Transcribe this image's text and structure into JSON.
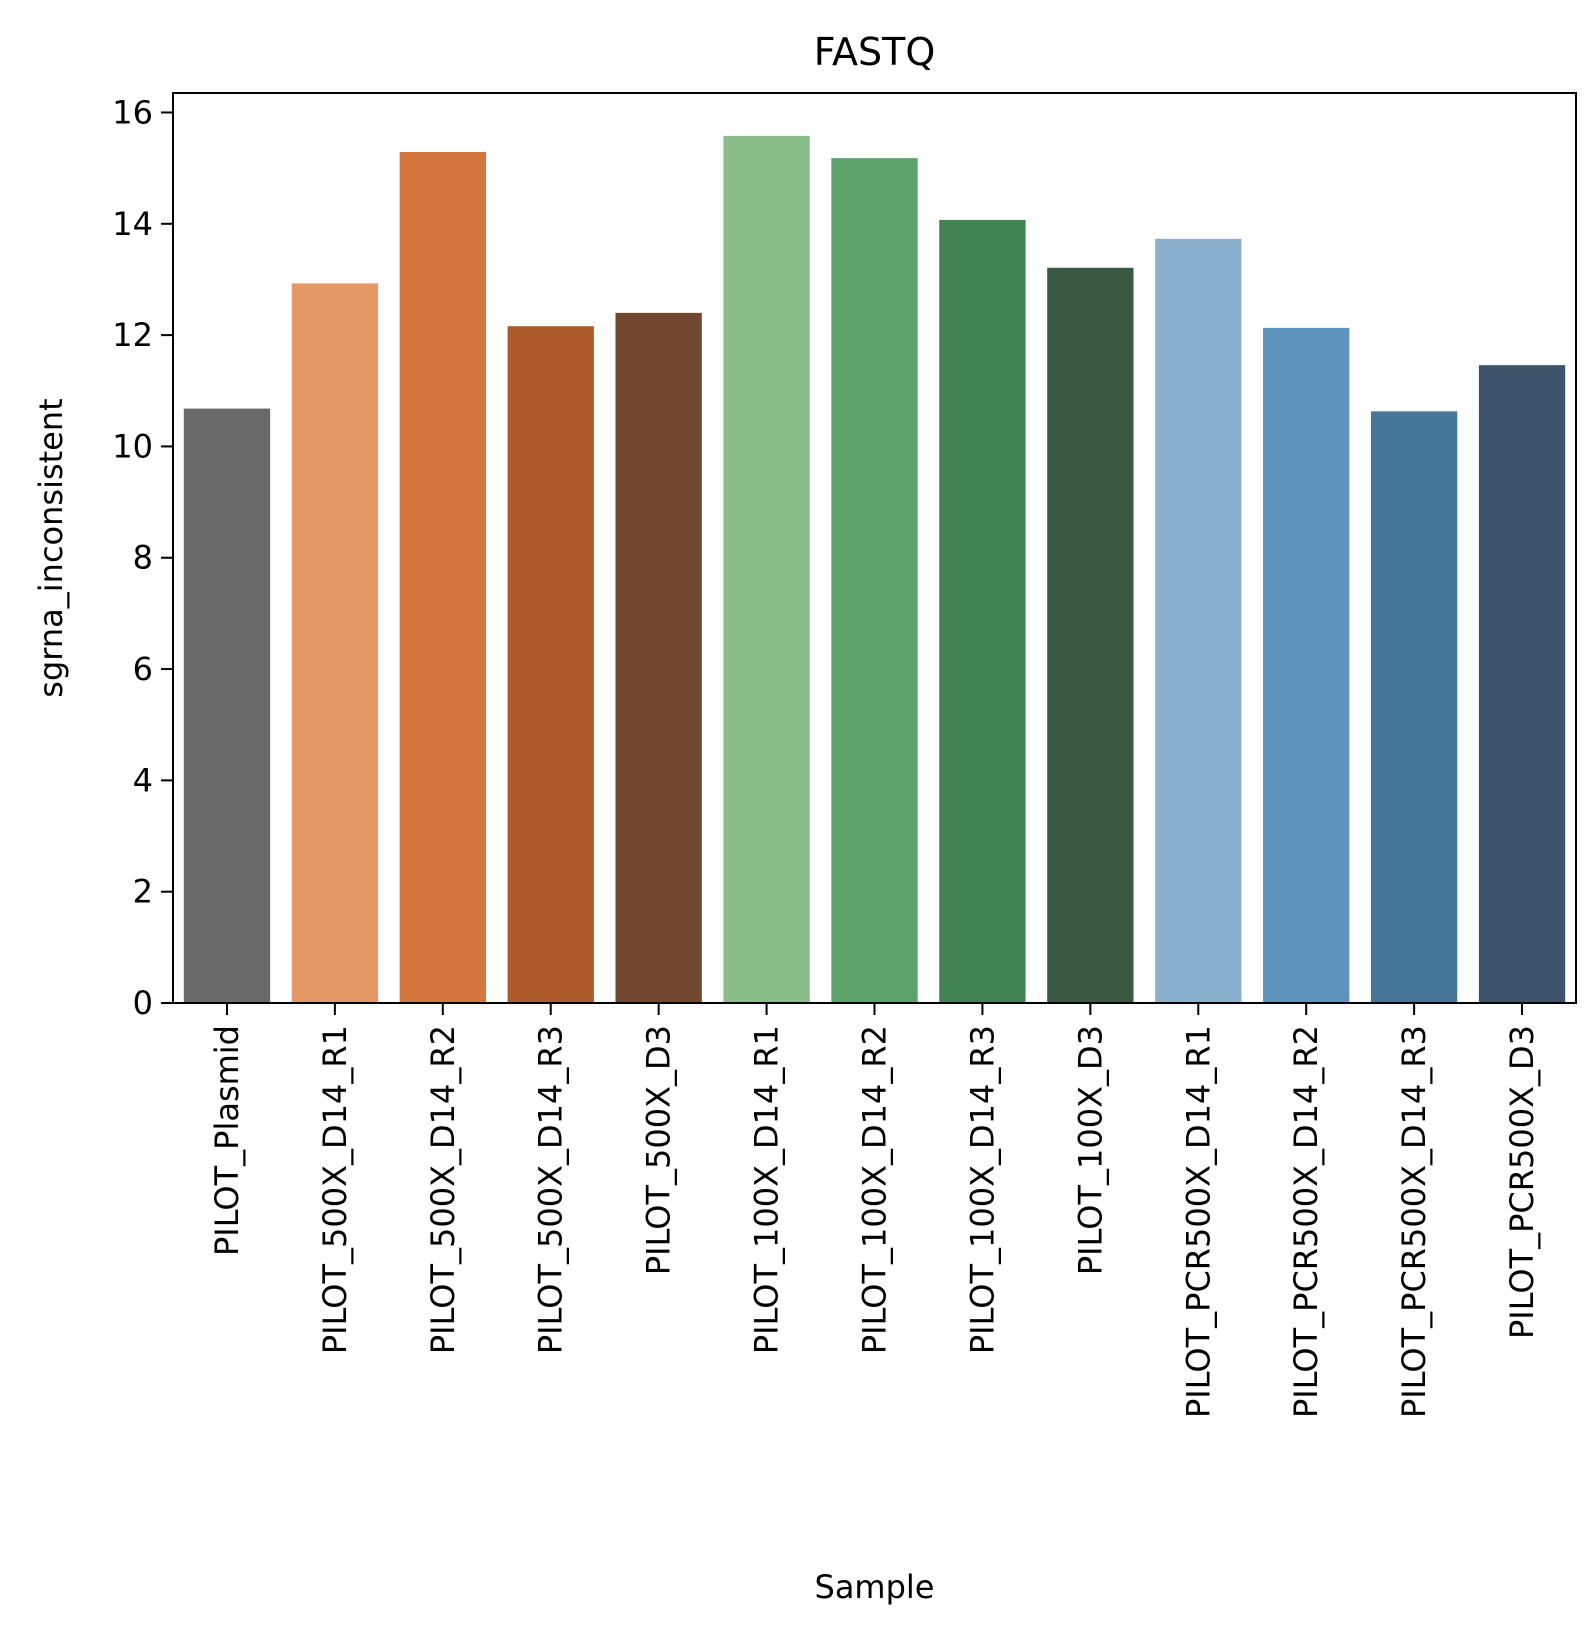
{
  "chart_data": {
    "type": "bar",
    "title": "FASTQ",
    "xlabel": "Sample",
    "ylabel": "sgrna_inconsistent",
    "ylim": [
      0,
      16.35
    ],
    "yticks": [
      0,
      2,
      4,
      6,
      8,
      10,
      12,
      14,
      16
    ],
    "grid": false,
    "categories": [
      "PILOT_Plasmid",
      "PILOT_500X_D14_R1",
      "PILOT_500X_D14_R2",
      "PILOT_500X_D14_R3",
      "PILOT_500X_D3",
      "PILOT_100X_D14_R1",
      "PILOT_100X_D14_R2",
      "PILOT_100X_D14_R3",
      "PILOT_100X_D3",
      "PILOT_PCR500X_D14_R1",
      "PILOT_PCR500X_D14_R2",
      "PILOT_PCR500X_D14_R3",
      "PILOT_PCR500X_D3"
    ],
    "values": [
      10.68,
      12.93,
      15.29,
      12.16,
      12.4,
      15.58,
      15.18,
      14.07,
      13.21,
      13.73,
      12.13,
      10.63,
      11.46
    ],
    "colors": [
      "#696969",
      "#e39866",
      "#d4763e",
      "#ae5b2c",
      "#724930",
      "#8bbd8a",
      "#5ea26b",
      "#428353",
      "#3b5a44",
      "#8ab0cd",
      "#5e93bb",
      "#457697",
      "#3d546b"
    ]
  }
}
